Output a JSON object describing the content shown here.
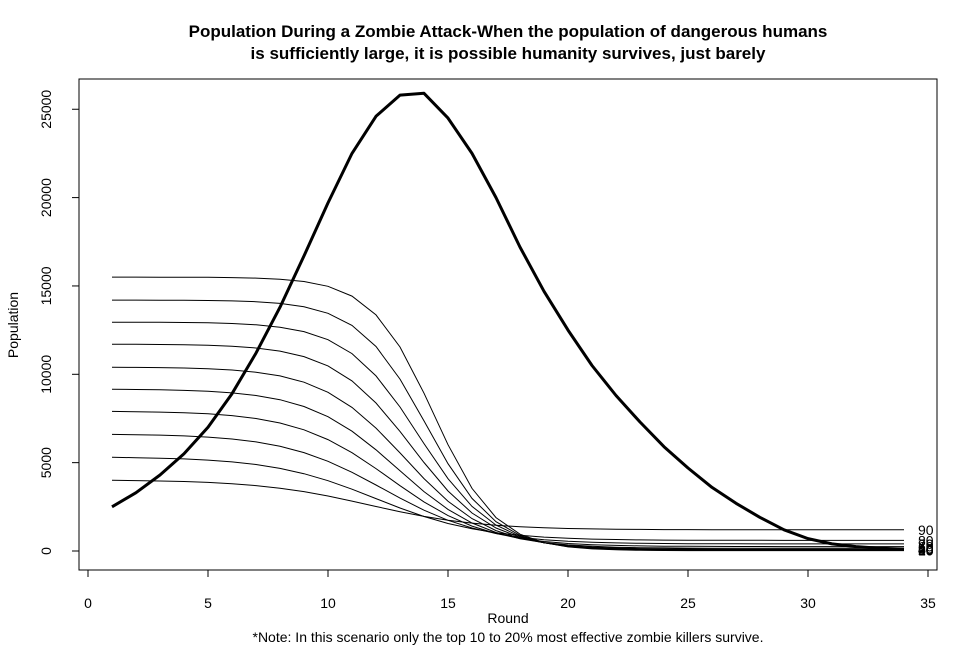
{
  "chart_data": {
    "type": "line",
    "title_lines": [
      "Population During a Zombie Attack-When the population of dangerous humans",
      "is sufficiently large, it is possible humanity survives, just barely"
    ],
    "xlabel": "Round",
    "ylabel": "Population",
    "note": "*Note: In this scenario only the top 10 to 20% most effective zombie killers survive.",
    "xlim": [
      0,
      35
    ],
    "ylim": [
      0,
      26000
    ],
    "xticks": [
      0,
      5,
      10,
      15,
      20,
      25,
      30,
      35
    ],
    "yticks": [
      0,
      5000,
      10000,
      15000,
      20000,
      25000
    ],
    "grid": false,
    "legend": "none",
    "x": [
      1,
      2,
      3,
      4,
      5,
      6,
      7,
      8,
      9,
      10,
      11,
      12,
      13,
      14,
      15,
      16,
      17,
      18,
      19,
      20,
      21,
      22,
      23,
      24,
      25,
      26,
      27,
      28,
      29,
      30,
      31,
      32,
      33,
      34
    ],
    "zombie_series": {
      "values": [
        2500,
        3300,
        4300,
        5500,
        7000,
        8900,
        11200,
        13800,
        16700,
        19700,
        22500,
        24600,
        25800,
        25900,
        24500,
        22500,
        20000,
        17200,
        14700,
        12500,
        10500,
        8800,
        7300,
        5900,
        4700,
        3600,
        2700,
        1900,
        1200,
        700,
        400,
        250,
        150,
        100
      ]
    },
    "human_series": [
      {
        "start": 4000,
        "end": 1200
      },
      {
        "start": 5300,
        "end": 600
      },
      {
        "start": 6600,
        "end": 400
      },
      {
        "start": 7900,
        "end": 250
      },
      {
        "start": 9150,
        "end": 150
      },
      {
        "start": 10400,
        "end": 100
      },
      {
        "start": 11700,
        "end": 70
      },
      {
        "start": 12950,
        "end": 50
      },
      {
        "start": 14200,
        "end": 30
      },
      {
        "start": 15500,
        "end": 20
      }
    ],
    "end_labels": [
      "90",
      "80",
      "70",
      "60",
      "50",
      "40",
      "30",
      "20",
      "10",
      "00"
    ]
  }
}
